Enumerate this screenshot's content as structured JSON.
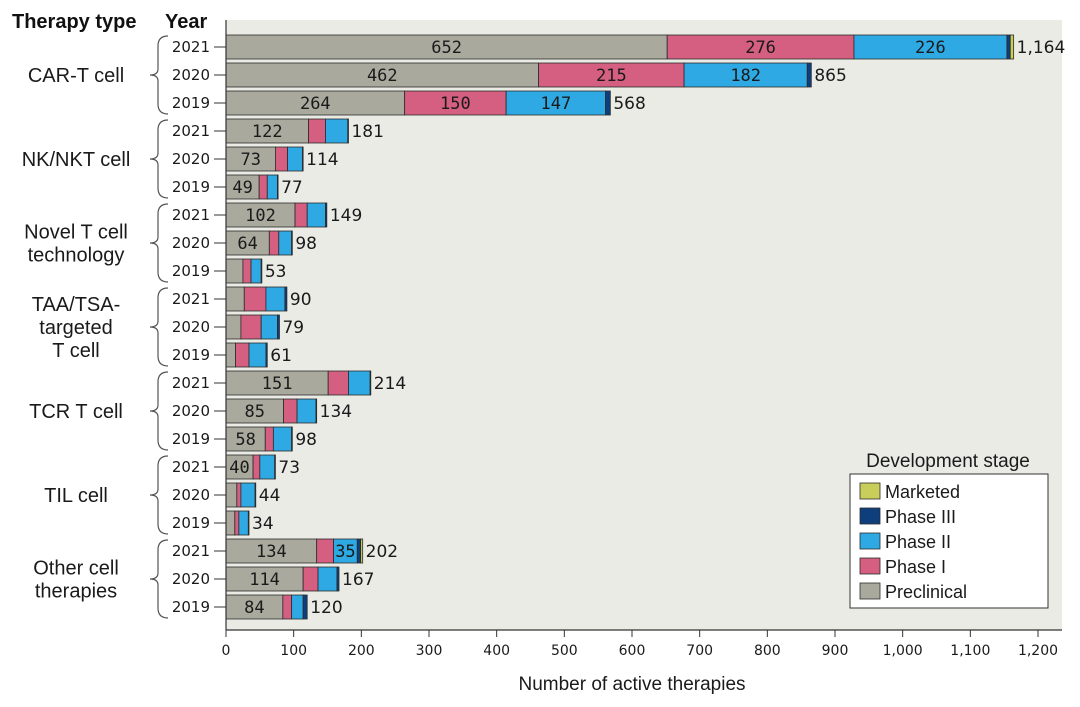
{
  "header": {
    "therapy_type": "Therapy type",
    "year": "Year"
  },
  "chart_data": {
    "type": "bar",
    "orientation": "horizontal",
    "stacked": true,
    "xlabel": "Number of active therapies",
    "xlim": [
      0,
      1200
    ],
    "xticks": [
      0,
      100,
      200,
      300,
      400,
      500,
      600,
      700,
      800,
      900,
      1000,
      1100,
      1200
    ],
    "xtick_labels": [
      "0",
      "100",
      "200",
      "300",
      "400",
      "500",
      "600",
      "700",
      "800",
      "900",
      "1,000",
      "1,100",
      "1,200"
    ],
    "grid": false,
    "legend": {
      "title": "Development stage",
      "position": "bottom-right",
      "entries": [
        "Marketed",
        "Phase III",
        "Phase II",
        "Phase I",
        "Preclinical"
      ]
    },
    "stages": [
      "Preclinical",
      "Phase I",
      "Phase II",
      "Phase III",
      "Marketed"
    ],
    "colors": {
      "Preclinical": "#a9aa9d",
      "Phase I": "#d45f80",
      "Phase II": "#2ea9e3",
      "Phase III": "#0e3e7c",
      "Marketed": "#c9cd5a"
    },
    "groups": [
      {
        "name_lines": [
          "CAR-T cell"
        ],
        "rows": [
          {
            "year": "2021",
            "total": 1164,
            "total_label": "1,164",
            "segments": [
              652,
              276,
              226,
              5,
              5
            ],
            "labels": [
              "652",
              "276",
              "226",
              "",
              ""
            ]
          },
          {
            "year": "2020",
            "total": 865,
            "total_label": "865",
            "segments": [
              462,
              215,
              182,
              6,
              0
            ],
            "labels": [
              "462",
              "215",
              "182",
              "",
              ""
            ]
          },
          {
            "year": "2019",
            "total": 568,
            "total_label": "568",
            "segments": [
              264,
              150,
              147,
              7,
              0
            ],
            "labels": [
              "264",
              "150",
              "147",
              "",
              ""
            ]
          }
        ]
      },
      {
        "name_lines": [
          "NK/NKT cell"
        ],
        "rows": [
          {
            "year": "2021",
            "total": 181,
            "total_label": "181",
            "segments": [
              122,
              25,
              33,
              1,
              0
            ],
            "labels": [
              "122",
              "",
              "",
              "",
              ""
            ]
          },
          {
            "year": "2020",
            "total": 114,
            "total_label": "114",
            "segments": [
              73,
              18,
              22,
              1,
              0
            ],
            "labels": [
              "73",
              "",
              "",
              "",
              ""
            ]
          },
          {
            "year": "2019",
            "total": 77,
            "total_label": "77",
            "segments": [
              49,
              12,
              15,
              1,
              0
            ],
            "labels": [
              "49",
              "",
              "",
              "",
              ""
            ]
          }
        ]
      },
      {
        "name_lines": [
          "Novel T cell",
          "technology"
        ],
        "rows": [
          {
            "year": "2021",
            "total": 149,
            "total_label": "149",
            "segments": [
              102,
              18,
              27,
              2,
              0
            ],
            "labels": [
              "102",
              "",
              "",
              "",
              ""
            ]
          },
          {
            "year": "2020",
            "total": 98,
            "total_label": "98",
            "segments": [
              64,
              14,
              19,
              1,
              0
            ],
            "labels": [
              "64",
              "",
              "",
              "",
              ""
            ]
          },
          {
            "year": "2019",
            "total": 53,
            "total_label": "53",
            "segments": [
              25,
              12,
              15,
              1,
              0
            ],
            "labels": [
              "",
              "",
              "",
              "",
              ""
            ]
          }
        ]
      },
      {
        "name_lines": [
          "TAA/TSA-",
          "targeted",
          "T cell"
        ],
        "rows": [
          {
            "year": "2021",
            "total": 90,
            "total_label": "90",
            "segments": [
              27,
              32,
              28,
              3,
              0
            ],
            "labels": [
              "",
              "",
              "",
              "",
              ""
            ]
          },
          {
            "year": "2020",
            "total": 79,
            "total_label": "79",
            "segments": [
              22,
              30,
              24,
              3,
              0
            ],
            "labels": [
              "",
              "",
              "",
              "",
              ""
            ]
          },
          {
            "year": "2019",
            "total": 61,
            "total_label": "61",
            "segments": [
              14,
              20,
              25,
              2,
              0
            ],
            "labels": [
              "",
              "",
              "",
              "",
              ""
            ]
          }
        ]
      },
      {
        "name_lines": [
          "TCR T cell"
        ],
        "rows": [
          {
            "year": "2021",
            "total": 214,
            "total_label": "214",
            "segments": [
              151,
              30,
              32,
              1,
              0
            ],
            "labels": [
              "151",
              "",
              "",
              "",
              ""
            ]
          },
          {
            "year": "2020",
            "total": 134,
            "total_label": "134",
            "segments": [
              85,
              20,
              28,
              1,
              0
            ],
            "labels": [
              "85",
              "",
              "",
              "",
              ""
            ]
          },
          {
            "year": "2019",
            "total": 98,
            "total_label": "98",
            "segments": [
              58,
              12,
              27,
              1,
              0
            ],
            "labels": [
              "58",
              "",
              "",
              "",
              ""
            ]
          }
        ]
      },
      {
        "name_lines": [
          "TIL cell"
        ],
        "rows": [
          {
            "year": "2021",
            "total": 73,
            "total_label": "73",
            "segments": [
              40,
              10,
              22,
              1,
              0
            ],
            "labels": [
              "40",
              "",
              "",
              "",
              ""
            ]
          },
          {
            "year": "2020",
            "total": 44,
            "total_label": "44",
            "segments": [
              16,
              6,
              21,
              1,
              0
            ],
            "labels": [
              "",
              "",
              "",
              "",
              ""
            ]
          },
          {
            "year": "2019",
            "total": 34,
            "total_label": "34",
            "segments": [
              13,
              6,
              14,
              1,
              0
            ],
            "labels": [
              "",
              "",
              "",
              "",
              ""
            ]
          }
        ]
      },
      {
        "name_lines": [
          "Other cell",
          "therapies"
        ],
        "rows": [
          {
            "year": "2021",
            "total": 202,
            "total_label": "202",
            "segments": [
              134,
              25,
              35,
              5,
              3
            ],
            "labels": [
              "134",
              "",
              "35",
              "",
              ""
            ]
          },
          {
            "year": "2020",
            "total": 167,
            "total_label": "167",
            "segments": [
              114,
              22,
              28,
              3,
              0
            ],
            "labels": [
              "114",
              "",
              "",
              "",
              ""
            ]
          },
          {
            "year": "2019",
            "total": 120,
            "total_label": "120",
            "segments": [
              84,
              13,
              17,
              6,
              0
            ],
            "labels": [
              "84",
              "",
              "",
              "",
              ""
            ]
          }
        ]
      }
    ]
  }
}
